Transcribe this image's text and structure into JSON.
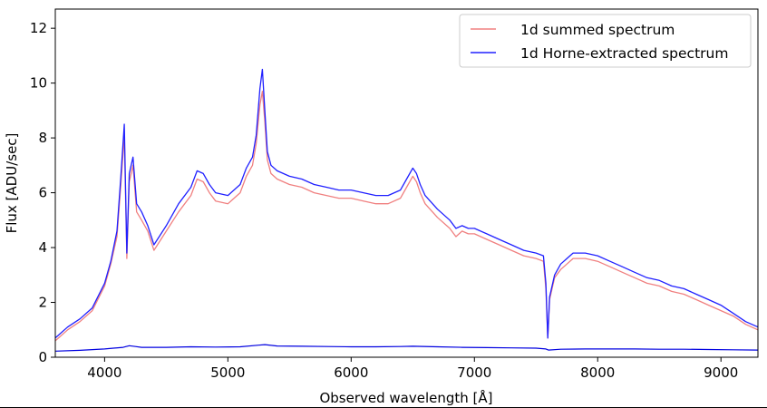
{
  "chart_data": {
    "type": "line",
    "title": "",
    "xlabel": "Observed wavelength [Å]",
    "ylabel": "Flux [ADU/sec]",
    "xlim": [
      3600,
      9300
    ],
    "ylim": [
      0,
      12.7
    ],
    "xticks": [
      4000,
      5000,
      6000,
      7000,
      8000,
      9000
    ],
    "yticks": [
      0,
      2,
      4,
      6,
      8,
      10,
      12
    ],
    "grid": false,
    "legend_position": "top-right",
    "series": [
      {
        "name": "1d summed spectrum",
        "color": "#f08080",
        "x": [
          3600,
          3700,
          3800,
          3900,
          4000,
          4050,
          4100,
          4130,
          4160,
          4180,
          4200,
          4230,
          4260,
          4300,
          4350,
          4400,
          4500,
          4600,
          4700,
          4750,
          4800,
          4850,
          4900,
          5000,
          5100,
          5150,
          5200,
          5230,
          5260,
          5280,
          5300,
          5320,
          5350,
          5400,
          5500,
          5600,
          5700,
          5800,
          5900,
          6000,
          6100,
          6200,
          6300,
          6400,
          6450,
          6500,
          6530,
          6560,
          6600,
          6700,
          6800,
          6850,
          6900,
          6950,
          7000,
          7100,
          7200,
          7300,
          7400,
          7500,
          7560,
          7580,
          7595,
          7610,
          7650,
          7700,
          7750,
          7800,
          7900,
          8000,
          8100,
          8200,
          8300,
          8400,
          8500,
          8600,
          8700,
          8800,
          8900,
          9000,
          9100,
          9200,
          9300
        ],
        "y": [
          0.6,
          1.0,
          1.3,
          1.7,
          2.6,
          3.4,
          4.4,
          6.2,
          8.1,
          3.6,
          6.4,
          7.0,
          5.3,
          5.0,
          4.6,
          3.9,
          4.6,
          5.3,
          5.9,
          6.5,
          6.4,
          6.0,
          5.7,
          5.6,
          6.0,
          6.6,
          7.0,
          7.8,
          9.2,
          9.7,
          8.6,
          7.2,
          6.7,
          6.5,
          6.3,
          6.2,
          6.0,
          5.9,
          5.8,
          5.8,
          5.7,
          5.6,
          5.6,
          5.8,
          6.2,
          6.6,
          6.4,
          6.0,
          5.6,
          5.1,
          4.7,
          4.4,
          4.6,
          4.5,
          4.5,
          4.3,
          4.1,
          3.9,
          3.7,
          3.6,
          3.5,
          2.5,
          0.7,
          2.1,
          2.9,
          3.2,
          3.4,
          3.6,
          3.6,
          3.5,
          3.3,
          3.1,
          2.9,
          2.7,
          2.6,
          2.4,
          2.3,
          2.1,
          1.9,
          1.7,
          1.5,
          1.2,
          1.0
        ]
      },
      {
        "name": "1d Horne-extracted spectrum",
        "color": "#2020ff",
        "x": [
          3600,
          3700,
          3800,
          3900,
          4000,
          4050,
          4100,
          4130,
          4160,
          4180,
          4200,
          4230,
          4260,
          4300,
          4350,
          4400,
          4500,
          4600,
          4700,
          4750,
          4800,
          4850,
          4900,
          5000,
          5100,
          5150,
          5200,
          5230,
          5260,
          5280,
          5300,
          5320,
          5350,
          5400,
          5500,
          5600,
          5700,
          5800,
          5900,
          6000,
          6100,
          6200,
          6300,
          6400,
          6450,
          6500,
          6530,
          6560,
          6600,
          6700,
          6800,
          6850,
          6900,
          6950,
          7000,
          7100,
          7200,
          7300,
          7400,
          7500,
          7560,
          7580,
          7595,
          7610,
          7650,
          7700,
          7750,
          7800,
          7900,
          8000,
          8100,
          8200,
          8300,
          8400,
          8500,
          8600,
          8700,
          8800,
          8900,
          9000,
          9100,
          9200,
          9300
        ],
        "y": [
          0.7,
          1.1,
          1.4,
          1.8,
          2.7,
          3.5,
          4.6,
          6.5,
          8.5,
          3.8,
          6.7,
          7.3,
          5.6,
          5.3,
          4.8,
          4.1,
          4.8,
          5.6,
          6.2,
          6.8,
          6.7,
          6.3,
          6.0,
          5.9,
          6.3,
          6.9,
          7.3,
          8.1,
          9.8,
          10.5,
          9.0,
          7.5,
          7.0,
          6.8,
          6.6,
          6.5,
          6.3,
          6.2,
          6.1,
          6.1,
          6.0,
          5.9,
          5.9,
          6.1,
          6.5,
          6.9,
          6.7,
          6.3,
          5.9,
          5.4,
          5.0,
          4.7,
          4.8,
          4.7,
          4.7,
          4.5,
          4.3,
          4.1,
          3.9,
          3.8,
          3.7,
          2.7,
          0.7,
          2.2,
          3.0,
          3.4,
          3.6,
          3.8,
          3.8,
          3.7,
          3.5,
          3.3,
          3.1,
          2.9,
          2.8,
          2.6,
          2.5,
          2.3,
          2.1,
          1.9,
          1.6,
          1.3,
          1.1
        ]
      },
      {
        "name": "",
        "color": "#0000e0",
        "x": [
          3600,
          3800,
          4000,
          4150,
          4200,
          4250,
          4300,
          4500,
          4700,
          4900,
          5100,
          5250,
          5300,
          5400,
          5600,
          5800,
          6000,
          6200,
          6400,
          6500,
          6700,
          6900,
          7100,
          7300,
          7500,
          7580,
          7600,
          7700,
          7900,
          8100,
          8300,
          8500,
          8700,
          8900,
          9100,
          9300
        ],
        "y": [
          0.22,
          0.25,
          0.3,
          0.36,
          0.42,
          0.39,
          0.36,
          0.36,
          0.38,
          0.37,
          0.38,
          0.44,
          0.46,
          0.41,
          0.4,
          0.39,
          0.38,
          0.38,
          0.39,
          0.4,
          0.38,
          0.36,
          0.35,
          0.34,
          0.33,
          0.3,
          0.26,
          0.29,
          0.3,
          0.3,
          0.3,
          0.29,
          0.29,
          0.28,
          0.27,
          0.26
        ]
      }
    ]
  }
}
